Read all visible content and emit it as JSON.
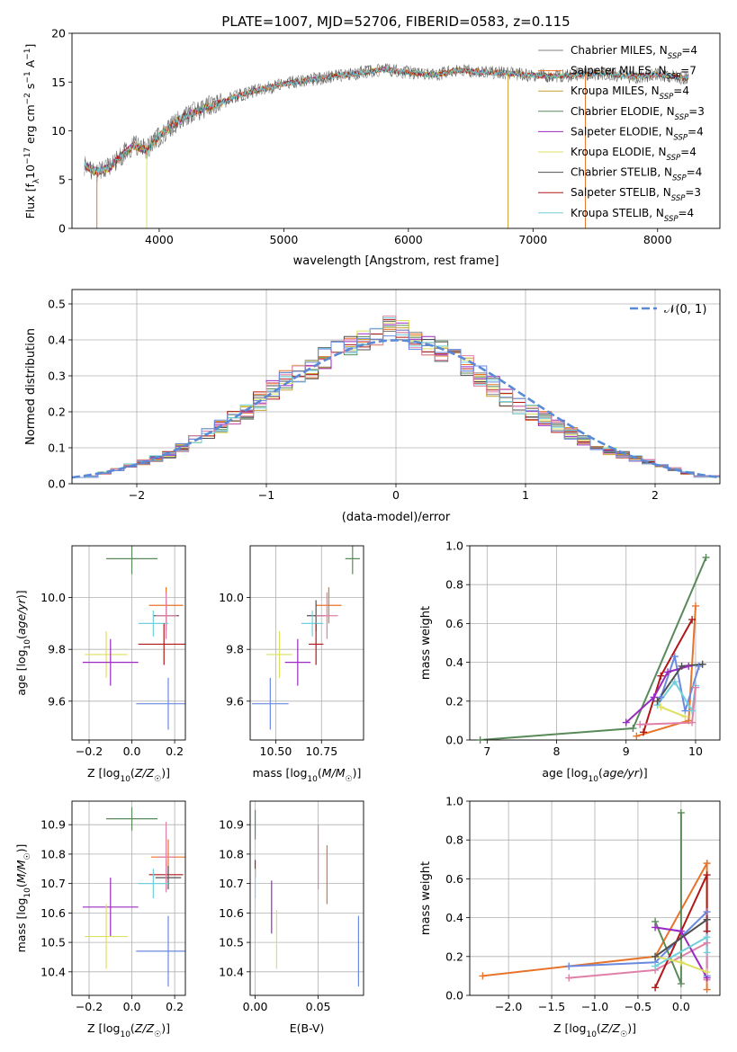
{
  "figure": {
    "title": "PLATE=1007, MJD=52706, FIBERID=0583, z=0.115"
  },
  "chart_data": [
    {
      "id": "spectrum",
      "type": "line",
      "title": "PLATE=1007, MJD=52706, FIBERID=0583, z=0.115",
      "xlabel": "wavelength [Angstrom, rest frame]",
      "ylabel": "Flux [f_λ10^-17 erg cm^-2 s^-1 A^-1]",
      "xlim": [
        3300,
        8500
      ],
      "ylim": [
        0,
        20
      ],
      "xticks": [
        4000,
        5000,
        6000,
        7000,
        8000
      ],
      "yticks": [
        0,
        5,
        10,
        15,
        20
      ],
      "legend": "right",
      "series": [
        {
          "name": "Chabrier MILES, N_SSP=4",
          "color": "#808080"
        },
        {
          "name": "Salpeter MILES, N_SSP=7",
          "color": "#e8742a"
        },
        {
          "name": "Kroupa MILES, N_SSP=4",
          "color": "#c8a030"
        },
        {
          "name": "Chabrier ELODIE, N_SSP=3",
          "color": "#5a8a5a"
        },
        {
          "name": "Salpeter ELODIE, N_SSP=4",
          "color": "#9a2ac0"
        },
        {
          "name": "Kroupa ELODIE, N_SSP=4",
          "color": "#dde060"
        },
        {
          "name": "Chabrier STELIB, N_SSP=4",
          "color": "#505050"
        },
        {
          "name": "Salpeter STELIB, N_SSP=3",
          "color": "#b01818"
        },
        {
          "name": "Kroupa STELIB, N_SSP=4",
          "color": "#70d0dc"
        }
      ],
      "envelope": {
        "x": [
          3400,
          3500,
          3600,
          3700,
          3800,
          3900,
          4000,
          4100,
          4200,
          4300,
          4400,
          4500,
          4600,
          4800,
          5000,
          5200,
          5400,
          5600,
          5800,
          6000,
          6200,
          6400,
          6600,
          6800,
          7000,
          7200,
          7400,
          7600,
          7800,
          8000,
          8200
        ],
        "y": [
          6.5,
          5.8,
          6.2,
          7.5,
          8.5,
          8.0,
          9.5,
          10.5,
          11.5,
          12.0,
          12.5,
          12.8,
          13.5,
          14.2,
          14.8,
          15.2,
          15.6,
          15.9,
          16.3,
          16.0,
          15.7,
          16.2,
          16.0,
          15.9,
          15.7,
          15.6,
          15.8,
          15.9,
          15.5,
          15.8,
          15.4
        ]
      }
    },
    {
      "id": "residuals",
      "type": "bar",
      "xlabel": "(data-model)/error",
      "ylabel": "Normed distribution",
      "xlim": [
        -2.5,
        2.5
      ],
      "ylim": [
        0,
        0.54
      ],
      "xticks": [
        -2,
        -1,
        0,
        1,
        2
      ],
      "yticks": [
        0.0,
        0.1,
        0.2,
        0.3,
        0.4,
        0.5
      ],
      "legend": "top-right",
      "reference": {
        "name": "𝒩(0, 1)",
        "color": "#5a8ad6",
        "mean": 0,
        "sigma": 1
      },
      "bin_width": 0.1,
      "bin_start": -2.5,
      "series_colors": [
        "#808080",
        "#e8742a",
        "#c8a030",
        "#5a8a5a",
        "#9a2ac0",
        "#dde060",
        "#505050",
        "#b01818",
        "#70d0dc",
        "#e080a8",
        "#6a8ae0"
      ],
      "histogram_base": [
        0.02,
        0.02,
        0.03,
        0.04,
        0.05,
        0.06,
        0.07,
        0.08,
        0.1,
        0.12,
        0.14,
        0.16,
        0.18,
        0.2,
        0.23,
        0.26,
        0.29,
        0.3,
        0.32,
        0.35,
        0.37,
        0.38,
        0.4,
        0.41,
        0.44,
        0.43,
        0.4,
        0.38,
        0.37,
        0.35,
        0.33,
        0.3,
        0.27,
        0.24,
        0.22,
        0.2,
        0.18,
        0.16,
        0.14,
        0.12,
        0.1,
        0.09,
        0.08,
        0.07,
        0.06,
        0.05,
        0.04,
        0.03,
        0.02,
        0.02
      ]
    },
    {
      "id": "age-vs-Z",
      "type": "scatter",
      "xlabel": "Z [log10(Z/Z☉)]",
      "ylabel": "age  [log10(age/yr)]",
      "xlim": [
        -0.28,
        0.25
      ],
      "ylim": [
        9.45,
        10.2
      ],
      "xticks": [
        -0.2,
        0.0,
        0.2
      ],
      "xtick_labels": [
        "−0.2",
        "0.0",
        "0.2"
      ],
      "yticks": [
        9.6,
        9.8,
        10.0
      ],
      "points": [
        {
          "x": 0.0,
          "y": 10.15,
          "xerr": 0.12,
          "yerr": 0.06,
          "color": "#5a8a5a"
        },
        {
          "x": 0.16,
          "y": 9.97,
          "xerr": 0.08,
          "yerr": 0.07,
          "color": "#e8742a"
        },
        {
          "x": 0.16,
          "y": 9.93,
          "xerr": 0.06,
          "yerr": 0.06,
          "color": "#505050"
        },
        {
          "x": 0.16,
          "y": 9.93,
          "xerr": 0.05,
          "yerr": 0.09,
          "color": "#e080a8"
        },
        {
          "x": 0.1,
          "y": 9.9,
          "xerr": 0.07,
          "yerr": 0.05,
          "color": "#70d0dc"
        },
        {
          "x": 0.15,
          "y": 9.82,
          "xerr": 0.12,
          "yerr": 0.08,
          "color": "#b01818"
        },
        {
          "x": -0.12,
          "y": 9.78,
          "xerr": 0.1,
          "yerr": 0.09,
          "color": "#dde060"
        },
        {
          "x": -0.1,
          "y": 9.75,
          "xerr": 0.13,
          "yerr": 0.09,
          "color": "#9a2ac0"
        },
        {
          "x": 0.17,
          "y": 9.59,
          "xerr": 0.15,
          "yerr": 0.1,
          "color": "#6a8ae0"
        }
      ]
    },
    {
      "id": "age-vs-mass",
      "type": "scatter",
      "xlabel": "mass [log10(M/M☉)]",
      "xlim": [
        10.36,
        10.98
      ],
      "ylim": [
        9.45,
        10.2
      ],
      "xticks": [
        10.5,
        10.75
      ],
      "yticks": [
        9.6,
        9.8,
        10.0
      ],
      "points": [
        {
          "x": 10.92,
          "y": 10.15,
          "xerr": 0.04,
          "yerr": 0.06,
          "color": "#5a8a5a"
        },
        {
          "x": 10.79,
          "y": 9.97,
          "xerr": 0.07,
          "yerr": 0.07,
          "color": "#e8742a"
        },
        {
          "x": 10.72,
          "y": 9.93,
          "xerr": 0.05,
          "yerr": 0.06,
          "color": "#505050"
        },
        {
          "x": 10.78,
          "y": 9.93,
          "xerr": 0.06,
          "yerr": 0.09,
          "color": "#e080a8"
        },
        {
          "x": 10.7,
          "y": 9.9,
          "xerr": 0.06,
          "yerr": 0.05,
          "color": "#70d0dc"
        },
        {
          "x": 10.72,
          "y": 9.82,
          "xerr": 0.04,
          "yerr": 0.08,
          "color": "#b01818"
        },
        {
          "x": 10.52,
          "y": 9.78,
          "xerr": 0.07,
          "yerr": 0.09,
          "color": "#dde060"
        },
        {
          "x": 10.62,
          "y": 9.75,
          "xerr": 0.07,
          "yerr": 0.09,
          "color": "#9a2ac0"
        },
        {
          "x": 10.47,
          "y": 9.59,
          "xerr": 0.1,
          "yerr": 0.1,
          "color": "#6a8ae0"
        }
      ]
    },
    {
      "id": "weight-vs-age",
      "type": "line",
      "xlabel": "age  [log10(age/yr)]",
      "ylabel": "mass weight",
      "xlim": [
        6.75,
        10.35
      ],
      "ylim": [
        0,
        1
      ],
      "xticks": [
        7,
        8,
        9,
        10
      ],
      "yticks": [
        0.0,
        0.2,
        0.4,
        0.6,
        0.8,
        1.0
      ],
      "series": [
        {
          "color": "#5a8a5a",
          "x": [
            6.9,
            9.1,
            10.15
          ],
          "y": [
            0.0,
            0.06,
            0.94
          ]
        },
        {
          "color": "#b01818",
          "x": [
            9.25,
            9.5,
            9.95
          ],
          "y": [
            0.04,
            0.33,
            0.62
          ]
        },
        {
          "color": "#e8742a",
          "x": [
            9.15,
            9.9,
            10.0
          ],
          "y": [
            0.02,
            0.1,
            0.69
          ]
        },
        {
          "color": "#6a8ae0",
          "x": [
            9.5,
            9.7,
            9.85,
            10.05
          ],
          "y": [
            0.22,
            0.43,
            0.15,
            0.38
          ]
        },
        {
          "color": "#9a2ac0",
          "x": [
            9.0,
            9.4,
            9.6,
            9.9
          ],
          "y": [
            0.09,
            0.22,
            0.35,
            0.38
          ]
        },
        {
          "color": "#70d0dc",
          "x": [
            9.45,
            9.7,
            9.95,
            10.0
          ],
          "y": [
            0.18,
            0.3,
            0.15,
            0.28
          ]
        },
        {
          "color": "#505050",
          "x": [
            9.45,
            9.8,
            10.1
          ],
          "y": [
            0.2,
            0.38,
            0.39
          ]
        },
        {
          "color": "#e080a8",
          "x": [
            9.2,
            9.95,
            10.0
          ],
          "y": [
            0.08,
            0.09,
            0.27
          ]
        },
        {
          "color": "#dde060",
          "x": [
            9.5,
            9.85
          ],
          "y": [
            0.17,
            0.12
          ]
        }
      ]
    },
    {
      "id": "mass-vs-Z",
      "type": "scatter",
      "xlabel": "Z [log10(Z/Z☉)]",
      "ylabel": "mass [log10(M/M☉)]",
      "xlim": [
        -0.28,
        0.25
      ],
      "ylim": [
        10.32,
        10.98
      ],
      "xticks": [
        -0.2,
        0.0,
        0.2
      ],
      "xtick_labels": [
        "−0.2",
        "0.0",
        "0.2"
      ],
      "yticks": [
        10.4,
        10.5,
        10.6,
        10.7,
        10.8,
        10.9
      ],
      "points": [
        {
          "x": 0.0,
          "y": 10.92,
          "xerr": 0.12,
          "yerr": 0.04,
          "color": "#5a8a5a"
        },
        {
          "x": 0.17,
          "y": 10.79,
          "xerr": 0.08,
          "yerr": 0.06,
          "color": "#e8742a"
        },
        {
          "x": 0.16,
          "y": 10.73,
          "xerr": 0.08,
          "yerr": 0.05,
          "color": "#b01818"
        },
        {
          "x": 0.17,
          "y": 10.72,
          "xerr": 0.06,
          "yerr": 0.04,
          "color": "#505050"
        },
        {
          "x": 0.16,
          "y": 10.79,
          "xerr": 0.04,
          "yerr": 0.12,
          "color": "#e080a8"
        },
        {
          "x": 0.1,
          "y": 10.7,
          "xerr": 0.07,
          "yerr": 0.05,
          "color": "#70d0dc"
        },
        {
          "x": -0.1,
          "y": 10.62,
          "xerr": 0.13,
          "yerr": 0.1,
          "color": "#9a2ac0"
        },
        {
          "x": -0.12,
          "y": 10.52,
          "xerr": 0.1,
          "yerr": 0.11,
          "color": "#dde060"
        },
        {
          "x": 0.17,
          "y": 10.47,
          "xerr": 0.15,
          "yerr": 0.12,
          "color": "#6a8ae0"
        }
      ]
    },
    {
      "id": "mass-vs-ebv",
      "type": "scatter",
      "xlabel": "E(B-V)",
      "xlim": [
        -0.004,
        0.086
      ],
      "ylim": [
        10.32,
        10.98
      ],
      "xticks": [
        0.0,
        0.05
      ],
      "xtick_labels": [
        "0.00",
        "0.05"
      ],
      "yticks": [
        10.4,
        10.5,
        10.6,
        10.7,
        10.8,
        10.9
      ],
      "points": [
        {
          "x": 0.0,
          "y": 10.9,
          "xerr": 0,
          "yerr": 0.05,
          "color": "#5a8a5a"
        },
        {
          "x": 0.0,
          "y": 10.75,
          "xerr": 0,
          "yerr": 0.03,
          "color": "#b01818"
        },
        {
          "x": 0.0,
          "y": 10.7,
          "xerr": 0,
          "yerr": 0.05,
          "color": "#70d0dc"
        },
        {
          "x": 0.013,
          "y": 10.62,
          "xerr": 0,
          "yerr": 0.09,
          "color": "#9a2ac0"
        },
        {
          "x": 0.017,
          "y": 10.51,
          "xerr": 0,
          "yerr": 0.1,
          "color": "#dde060"
        },
        {
          "x": 0.05,
          "y": 10.79,
          "xerr": 0,
          "yerr": 0.11,
          "color": "#e080a8"
        },
        {
          "x": 0.057,
          "y": 10.73,
          "xerr": 0,
          "yerr": 0.1,
          "color": "#e8742a"
        },
        {
          "x": 0.082,
          "y": 10.47,
          "xerr": 0,
          "yerr": 0.12,
          "color": "#6a8ae0"
        }
      ]
    },
    {
      "id": "weight-vs-Z",
      "type": "line",
      "xlabel": "Z [log10(Z/Z☉)]",
      "ylabel": "mass weight",
      "xlim": [
        -2.45,
        0.45
      ],
      "ylim": [
        0,
        1
      ],
      "xticks": [
        -2.0,
        -1.5,
        -1.0,
        -0.5,
        0.0
      ],
      "xtick_labels": [
        "−2.0",
        "−1.5",
        "−1.0",
        "−0.5",
        "0.0"
      ],
      "yticks": [
        0.0,
        0.2,
        0.4,
        0.6,
        0.8,
        1.0
      ],
      "series": [
        {
          "color": "#e8742a",
          "x": [
            -2.3,
            -0.3,
            0.3,
            0.3
          ],
          "y": [
            0.1,
            0.2,
            0.68,
            0.03
          ]
        },
        {
          "color": "#6a8ae0",
          "x": [
            -1.3,
            -0.3,
            0.3,
            0.3
          ],
          "y": [
            0.15,
            0.17,
            0.43,
            0.1
          ]
        },
        {
          "color": "#e080a8",
          "x": [
            -1.3,
            -0.3,
            0.3,
            0.3
          ],
          "y": [
            0.09,
            0.13,
            0.27,
            0.08
          ]
        },
        {
          "color": "#5a8a5a",
          "x": [
            -0.3,
            0.0,
            0.0
          ],
          "y": [
            0.38,
            0.06,
            0.94
          ]
        },
        {
          "color": "#b01818",
          "x": [
            -0.3,
            0.3,
            0.3
          ],
          "y": [
            0.04,
            0.62,
            0.33
          ]
        },
        {
          "color": "#9a2ac0",
          "x": [
            -0.3,
            0.0,
            0.3
          ],
          "y": [
            0.35,
            0.33,
            0.09
          ]
        },
        {
          "color": "#dde060",
          "x": [
            -0.3,
            0.0,
            0.3
          ],
          "y": [
            0.2,
            0.17,
            0.12
          ]
        },
        {
          "color": "#70d0dc",
          "x": [
            -0.3,
            0.3,
            0.3
          ],
          "y": [
            0.15,
            0.3,
            0.22
          ]
        },
        {
          "color": "#505050",
          "x": [
            -0.3,
            0.3
          ],
          "y": [
            0.2,
            0.39
          ]
        }
      ]
    }
  ]
}
